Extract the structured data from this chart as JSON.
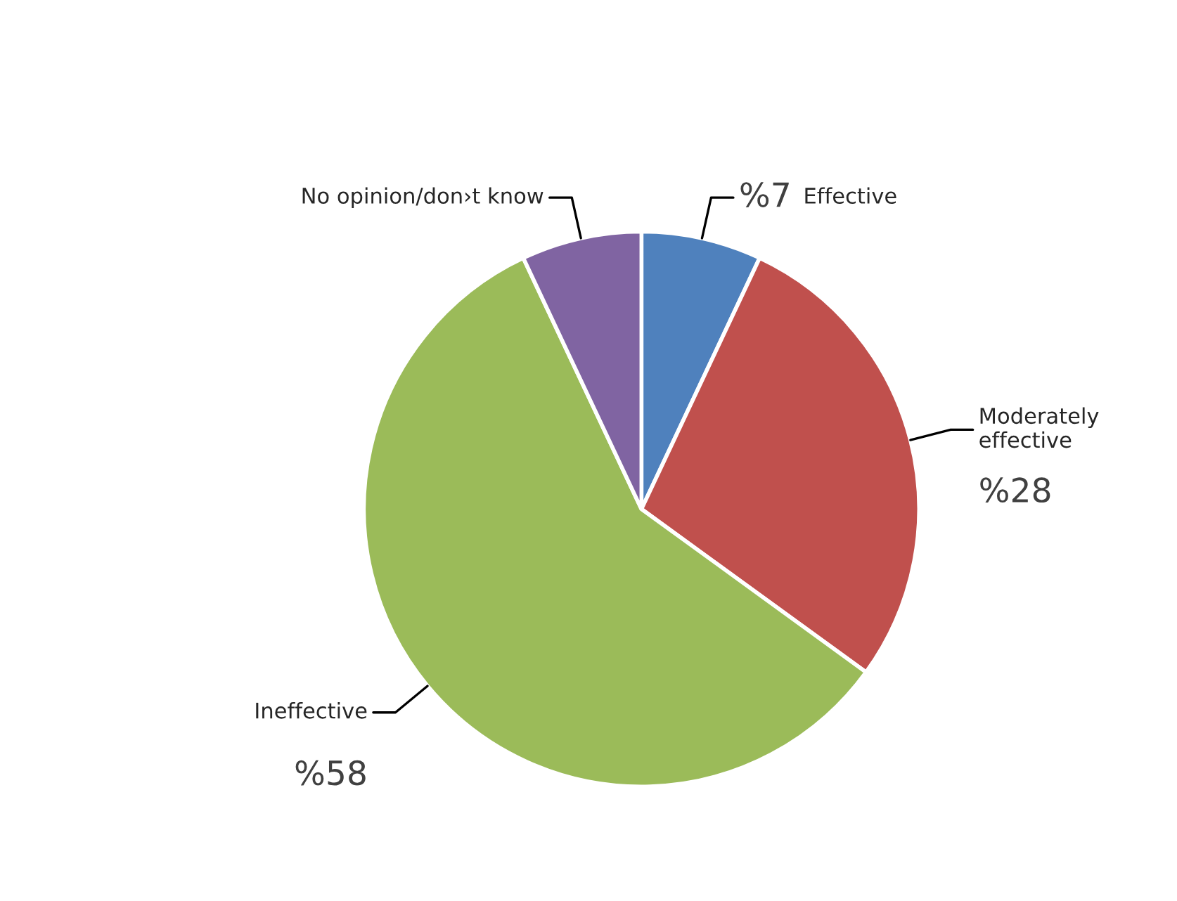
{
  "chart_data": {
    "type": "pie",
    "categories": [
      "Effective",
      "Moderately\neffective",
      "Ineffective",
      "No opinion/don›t know"
    ],
    "values": [
      7,
      28,
      58,
      7
    ],
    "value_labels": [
      "%7",
      "%28",
      "%58",
      null
    ],
    "colors": [
      "#4f81bd",
      "#c0504d",
      "#9bbb59",
      "#8064a2"
    ]
  }
}
